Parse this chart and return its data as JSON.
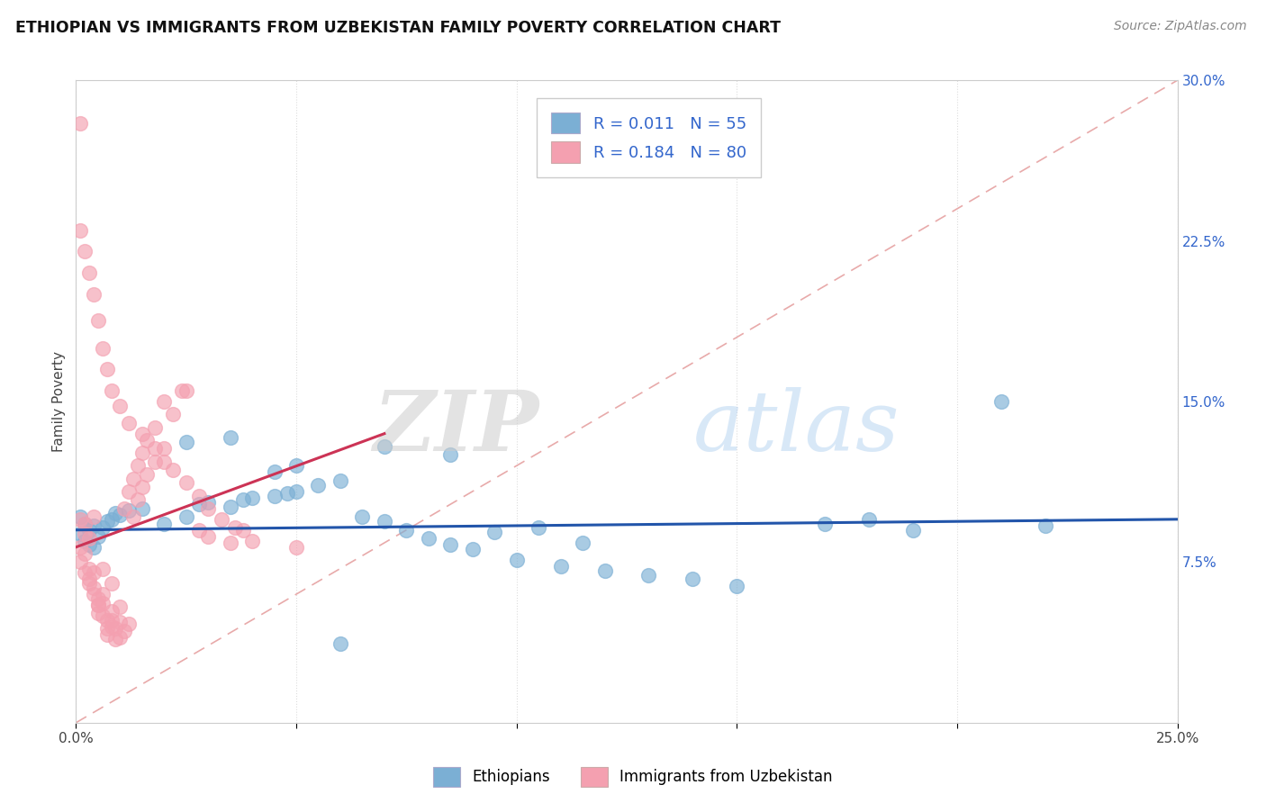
{
  "title": "ETHIOPIAN VS IMMIGRANTS FROM UZBEKISTAN FAMILY POVERTY CORRELATION CHART",
  "source": "Source: ZipAtlas.com",
  "xlabel_ethiopians": "Ethiopians",
  "xlabel_uzbekistan": "Immigrants from Uzbekistan",
  "ylabel": "Family Poverty",
  "xlim": [
    0,
    0.25
  ],
  "ylim": [
    0,
    0.3
  ],
  "r_ethiopian": 0.011,
  "n_ethiopian": 55,
  "r_uzbekistan": 0.184,
  "n_uzbekistan": 80,
  "color_ethiopian": "#7BAFD4",
  "color_uzbekistan": "#F4A0B0",
  "trend_ethiopian": "#2255AA",
  "trend_uzbekistan": "#CC3355",
  "diag_color": "#E8A0A8",
  "ethiopian_x": [
    0.001,
    0.002,
    0.001,
    0.003,
    0.002,
    0.004,
    0.005,
    0.003,
    0.006,
    0.004,
    0.008,
    0.007,
    0.01,
    0.012,
    0.009,
    0.015,
    0.02,
    0.025,
    0.03,
    0.028,
    0.035,
    0.04,
    0.038,
    0.045,
    0.05,
    0.048,
    0.055,
    0.06,
    0.065,
    0.07,
    0.075,
    0.08,
    0.085,
    0.09,
    0.1,
    0.11,
    0.12,
    0.13,
    0.05,
    0.045,
    0.025,
    0.035,
    0.07,
    0.085,
    0.115,
    0.06,
    0.14,
    0.15,
    0.095,
    0.105,
    0.17,
    0.18,
    0.19,
    0.21,
    0.22
  ],
  "ethiopian_y": [
    0.096,
    0.093,
    0.088,
    0.09,
    0.085,
    0.092,
    0.087,
    0.083,
    0.091,
    0.082,
    0.095,
    0.094,
    0.097,
    0.099,
    0.098,
    0.1,
    0.093,
    0.096,
    0.103,
    0.102,
    0.101,
    0.105,
    0.104,
    0.106,
    0.108,
    0.107,
    0.111,
    0.113,
    0.096,
    0.094,
    0.09,
    0.086,
    0.083,
    0.081,
    0.076,
    0.073,
    0.071,
    0.069,
    0.12,
    0.117,
    0.131,
    0.133,
    0.129,
    0.125,
    0.084,
    0.037,
    0.067,
    0.064,
    0.089,
    0.091,
    0.093,
    0.095,
    0.09,
    0.15,
    0.092
  ],
  "uzbekistan_x": [
    0.001,
    0.001,
    0.002,
    0.001,
    0.002,
    0.003,
    0.002,
    0.003,
    0.004,
    0.003,
    0.004,
    0.005,
    0.004,
    0.005,
    0.006,
    0.005,
    0.006,
    0.007,
    0.006,
    0.007,
    0.008,
    0.007,
    0.008,
    0.009,
    0.008,
    0.01,
    0.009,
    0.011,
    0.01,
    0.012,
    0.011,
    0.013,
    0.012,
    0.014,
    0.013,
    0.015,
    0.014,
    0.016,
    0.015,
    0.018,
    0.016,
    0.02,
    0.018,
    0.022,
    0.02,
    0.024,
    0.025,
    0.028,
    0.03,
    0.035,
    0.001,
    0.002,
    0.003,
    0.004,
    0.005,
    0.006,
    0.007,
    0.008,
    0.01,
    0.012,
    0.015,
    0.018,
    0.02,
    0.022,
    0.025,
    0.028,
    0.03,
    0.033,
    0.036,
    0.04,
    0.001,
    0.002,
    0.003,
    0.004,
    0.005,
    0.006,
    0.008,
    0.01,
    0.038,
    0.05
  ],
  "uzbekistan_y": [
    0.28,
    0.095,
    0.088,
    0.082,
    0.093,
    0.086,
    0.079,
    0.072,
    0.096,
    0.067,
    0.063,
    0.058,
    0.07,
    0.055,
    0.072,
    0.051,
    0.06,
    0.048,
    0.056,
    0.044,
    0.065,
    0.041,
    0.052,
    0.039,
    0.048,
    0.047,
    0.044,
    0.043,
    0.054,
    0.046,
    0.1,
    0.096,
    0.108,
    0.104,
    0.114,
    0.11,
    0.12,
    0.116,
    0.126,
    0.122,
    0.132,
    0.128,
    0.138,
    0.144,
    0.15,
    0.155,
    0.155,
    0.09,
    0.087,
    0.084,
    0.23,
    0.22,
    0.21,
    0.2,
    0.188,
    0.175,
    0.165,
    0.155,
    0.148,
    0.14,
    0.135,
    0.128,
    0.122,
    0.118,
    0.112,
    0.106,
    0.1,
    0.095,
    0.091,
    0.085,
    0.075,
    0.07,
    0.065,
    0.06,
    0.055,
    0.05,
    0.045,
    0.04,
    0.09,
    0.082
  ]
}
